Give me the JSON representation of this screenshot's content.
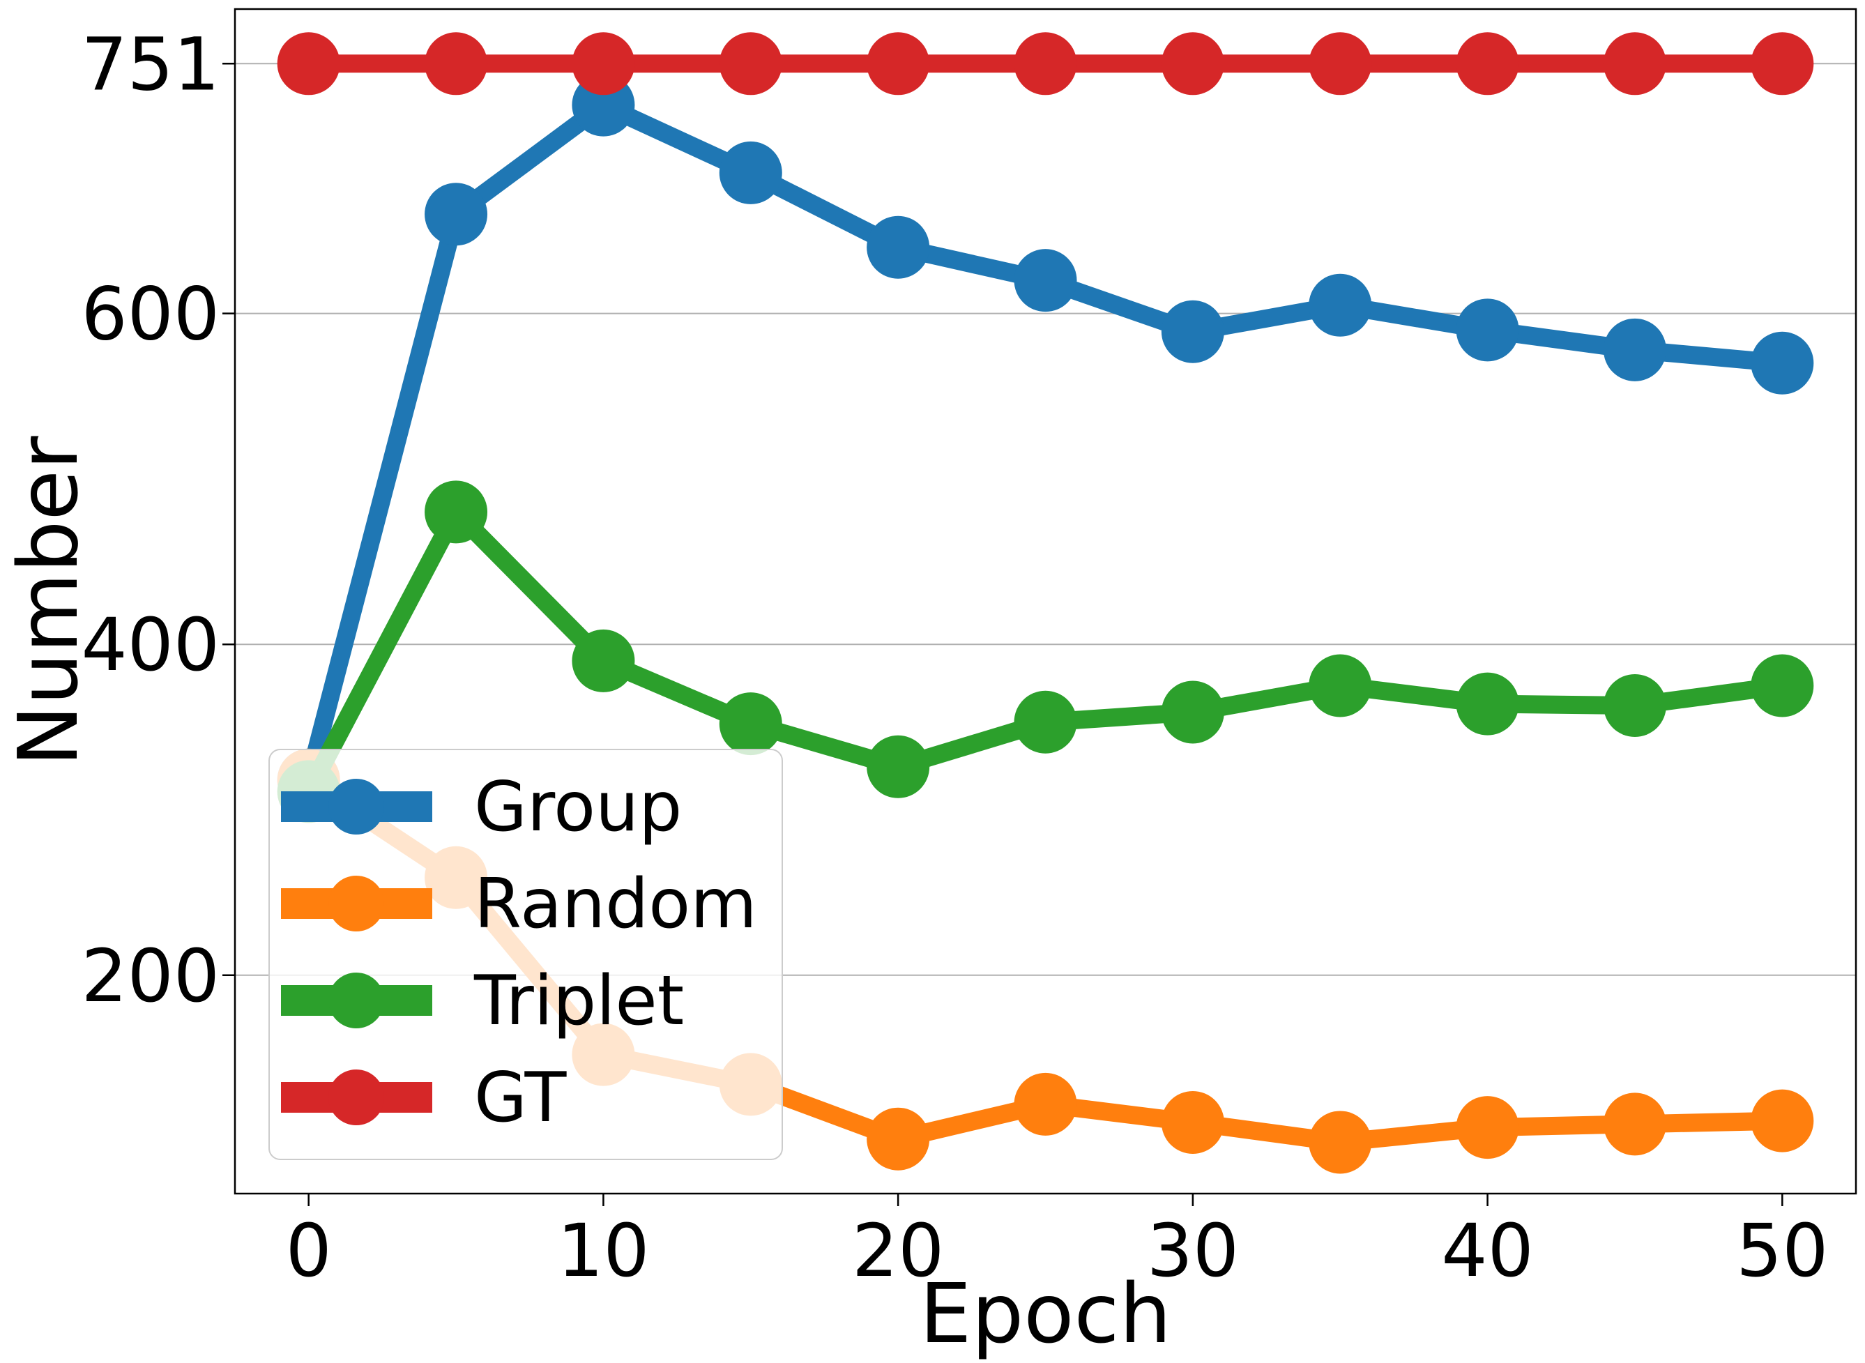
{
  "chart_data": {
    "type": "line",
    "title": "",
    "xlabel": "Epoch",
    "ylabel": "Number",
    "xlim": [
      -2.5,
      52.5
    ],
    "ylim": [
      68,
      784
    ],
    "x_ticks": [
      0,
      10,
      20,
      30,
      40,
      50
    ],
    "y_ticks": [
      200,
      400,
      600,
      751
    ],
    "grid": "horizontal",
    "legend_position": "lower-left",
    "x": [
      0,
      5,
      10,
      15,
      20,
      25,
      30,
      35,
      40,
      45,
      50
    ],
    "series": [
      {
        "name": "Group",
        "color": "#1f77b4",
        "values": [
          318,
          660,
          726,
          685,
          640,
          620,
          589,
          605,
          590,
          578,
          570
        ]
      },
      {
        "name": "Random",
        "color": "#ff7f0e",
        "values": [
          318,
          259,
          152,
          134,
          101,
          122,
          111,
          99,
          108,
          110,
          112
        ]
      },
      {
        "name": "Triplet",
        "color": "#2ca02c",
        "values": [
          311,
          480,
          390,
          352,
          326,
          353,
          359,
          375,
          364,
          363,
          375
        ]
      },
      {
        "name": "GT",
        "color": "#d62728",
        "values": [
          751,
          751,
          751,
          751,
          751,
          751,
          751,
          751,
          751,
          751,
          751
        ]
      }
    ]
  }
}
